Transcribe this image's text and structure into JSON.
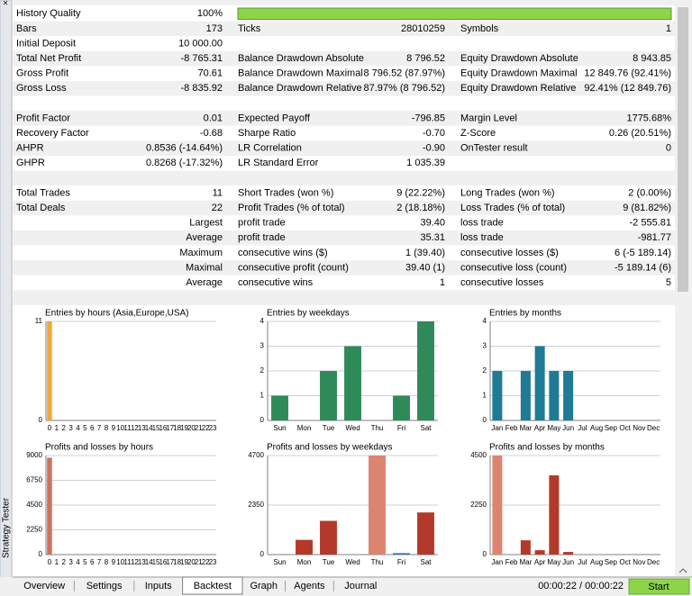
{
  "window": {
    "side_title": "Strategy Tester",
    "close": "×"
  },
  "report": {
    "history_quality": [
      "History Quality",
      "100%"
    ],
    "sections": [
      [
        [
          [
            "Bars",
            "173"
          ],
          [
            "Ticks",
            "28010259"
          ],
          [
            "Symbols",
            "1"
          ]
        ],
        [
          [
            "Initial Deposit",
            "10 000.00"
          ]
        ],
        [
          [
            "Total Net Profit",
            "-8 765.31"
          ],
          [
            "Balance Drawdown Absolute",
            "8 796.52"
          ],
          [
            "Equity Drawdown Absolute",
            "8 943.85"
          ]
        ],
        [
          [
            "Gross Profit",
            "70.61"
          ],
          [
            "Balance Drawdown Maximal",
            "8 796.52 (87.97%)"
          ],
          [
            "Equity Drawdown Maximal",
            "12 849.76 (92.41%)"
          ]
        ],
        [
          [
            "Gross Loss",
            "-8 835.92"
          ],
          [
            "Balance Drawdown Relative",
            "87.97% (8 796.52)"
          ],
          [
            "Equity Drawdown Relative",
            "92.41% (12 849.76)"
          ]
        ]
      ],
      [
        [
          [
            "Profit Factor",
            "0.01"
          ],
          [
            "Expected Payoff",
            "-796.85"
          ],
          [
            "Margin Level",
            "1775.68%"
          ]
        ],
        [
          [
            "Recovery Factor",
            "-0.68"
          ],
          [
            "Sharpe Ratio",
            "-0.70"
          ],
          [
            "Z-Score",
            "0.26 (20.51%)"
          ]
        ],
        [
          [
            "AHPR",
            "0.8536 (-14.64%)"
          ],
          [
            "LR Correlation",
            "-0.90"
          ],
          [
            "OnTester result",
            "0"
          ]
        ],
        [
          [
            "GHPR",
            "0.8268 (-17.32%)"
          ],
          [
            "LR Standard Error",
            "1 035.39"
          ]
        ]
      ],
      [
        [
          [
            "Total Trades",
            "11"
          ],
          [
            "Short Trades (won %)",
            "9 (22.22%)"
          ],
          [
            "Long Trades (won %)",
            "2 (0.00%)"
          ]
        ],
        [
          [
            "Total Deals",
            "22"
          ],
          [
            "Profit Trades (% of total)",
            "2 (18.18%)"
          ],
          [
            "Loss Trades (% of total)",
            "9 (81.82%)"
          ]
        ],
        [
          [
            "Largest"
          ],
          [
            "profit trade",
            "39.40"
          ],
          [
            "loss trade",
            "-2 555.81"
          ]
        ],
        [
          [
            "Average"
          ],
          [
            "profit trade",
            "35.31"
          ],
          [
            "loss trade",
            "-981.77"
          ]
        ],
        [
          [
            "Maximum"
          ],
          [
            "consecutive wins ($)",
            "1 (39.40)"
          ],
          [
            "consecutive losses ($)",
            "6 (-5 189.14)"
          ]
        ],
        [
          [
            "Maximal"
          ],
          [
            "consecutive profit (count)",
            "39.40 (1)"
          ],
          [
            "consecutive loss (count)",
            "-5 189.14 (6)"
          ]
        ],
        [
          [
            "Average"
          ],
          [
            "consecutive wins",
            "1"
          ],
          [
            "consecutive losses",
            "5"
          ]
        ]
      ]
    ]
  },
  "chart_data": [
    {
      "type": "bar",
      "title": "Entries by hours (Asia,Europe,USA)",
      "categories": [
        "0",
        "1",
        "2",
        "3",
        "4",
        "5",
        "6",
        "7",
        "8",
        "9",
        "10",
        "11",
        "12",
        "13",
        "14",
        "15",
        "16",
        "17",
        "18",
        "19",
        "20",
        "21",
        "22",
        "23"
      ],
      "values": [
        11,
        0,
        0,
        0,
        0,
        0,
        0,
        0,
        0,
        0,
        0,
        0,
        0,
        0,
        0,
        0,
        0,
        0,
        0,
        0,
        0,
        0,
        0,
        0
      ],
      "color": "#f2a73a",
      "ylim": [
        0,
        11
      ],
      "yticks": [
        0,
        11
      ],
      "grid": true
    },
    {
      "type": "bar",
      "title": "Entries by weekdays",
      "categories": [
        "Sun",
        "Mon",
        "Tue",
        "Wed",
        "Thu",
        "Fri",
        "Sat"
      ],
      "values": [
        1,
        0,
        2,
        3,
        0,
        1,
        4
      ],
      "color": "#2f8a5a",
      "ylim": [
        0,
        4
      ],
      "yticks": [
        0,
        1,
        2,
        3,
        4
      ],
      "grid": true
    },
    {
      "type": "bar",
      "title": "Entries by months",
      "categories": [
        "Jan",
        "Feb",
        "Mar",
        "Apr",
        "May",
        "Jun",
        "Jul",
        "Aug",
        "Sep",
        "Oct",
        "Nov",
        "Dec"
      ],
      "values": [
        2,
        0,
        2,
        3,
        2,
        2,
        0,
        0,
        0,
        0,
        0,
        0
      ],
      "color": "#1f7b95",
      "ylim": [
        0,
        4
      ],
      "yticks": [
        0,
        1,
        2,
        3,
        4
      ],
      "grid": true
    },
    {
      "type": "bar",
      "title": "Profits and losses by hours",
      "categories": [
        "0",
        "1",
        "2",
        "3",
        "4",
        "5",
        "6",
        "7",
        "8",
        "9",
        "10",
        "11",
        "12",
        "13",
        "14",
        "15",
        "16",
        "17",
        "18",
        "19",
        "20",
        "21",
        "22",
        "23"
      ],
      "values": [
        8800,
        0,
        0,
        0,
        0,
        0,
        0,
        0,
        0,
        0,
        0,
        0,
        0,
        0,
        0,
        0,
        0,
        0,
        0,
        0,
        0,
        0,
        0,
        0
      ],
      "color": "#d2705e",
      "ylim": [
        0,
        9000
      ],
      "yticks": [
        0,
        2250,
        4500,
        6750,
        9000
      ],
      "grid": true
    },
    {
      "type": "bar",
      "title": "Profits and losses by weekdays",
      "categories": [
        "Sun",
        "Mon",
        "Tue",
        "Wed",
        "Thu",
        "Fri",
        "Sat"
      ],
      "values": [
        0,
        700,
        1600,
        0,
        4700,
        70,
        2000
      ],
      "colors": [
        "#b33a2a",
        "#b33a2a",
        "#b33a2a",
        "#b33a2a",
        "#dd8470",
        "#3a6fc0",
        "#b33a2a"
      ],
      "ylim": [
        0,
        4700
      ],
      "yticks": [
        0,
        2350,
        4700
      ],
      "grid": true
    },
    {
      "type": "bar",
      "title": "Profits and losses by months",
      "categories": [
        "Jan",
        "Feb",
        "Mar",
        "Apr",
        "May",
        "Jun",
        "Jul",
        "Aug",
        "Sep",
        "Oct",
        "Nov",
        "Dec"
      ],
      "values": [
        4500,
        0,
        650,
        200,
        3600,
        120,
        0,
        0,
        0,
        0,
        0,
        0
      ],
      "colors": [
        "#dd8470",
        "#b33a2a",
        "#b33a2a",
        "#b33a2a",
        "#b33a2a",
        "#b33a2a",
        "#b33a2a",
        "#b33a2a",
        "#b33a2a",
        "#b33a2a",
        "#b33a2a",
        "#b33a2a"
      ],
      "ylim": [
        0,
        4500
      ],
      "yticks": [
        0,
        2250,
        4500
      ],
      "grid": true
    }
  ],
  "tabs": [
    "Overview",
    "Settings",
    "Inputs",
    "Backtest",
    "Graph",
    "Agents",
    "Journal"
  ],
  "active_tab": 3,
  "status": {
    "time": "00:00:22 / 00:00:22",
    "button": "Start"
  }
}
